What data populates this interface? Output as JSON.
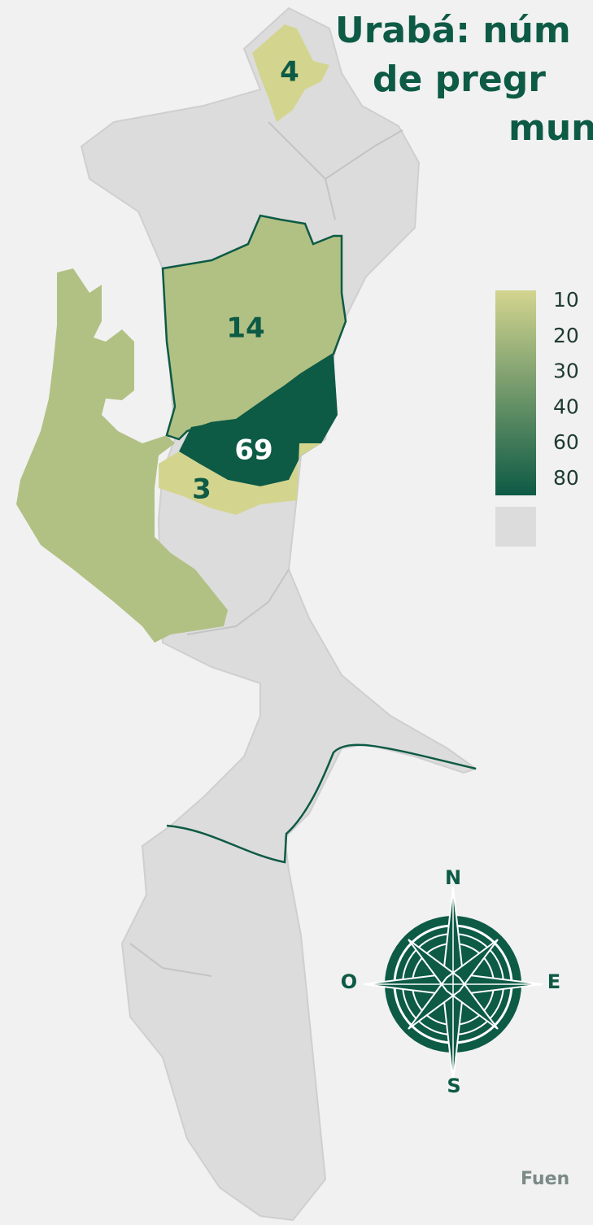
{
  "title_lines": [
    "Urabá: núm",
    "de pregr",
    "mun"
  ],
  "regions": [
    {
      "label": "4",
      "value": 4,
      "color": "#d3d58f"
    },
    {
      "label": "14",
      "value": 14,
      "color": "#b1c184"
    },
    {
      "label": "69",
      "value": 69,
      "color": "#0d5a45"
    },
    {
      "label": "3",
      "value": 3,
      "color": "#d3d58f"
    }
  ],
  "legend": {
    "ticks": [
      10,
      20,
      30,
      40,
      60,
      80
    ],
    "colors": [
      "#d3d58f",
      "#0d5a45"
    ],
    "no_data_color": "#dcdcdc"
  },
  "compass": {
    "n": "N",
    "s": "S",
    "e": "E",
    "w": "O"
  },
  "footer": "Fuen"
}
